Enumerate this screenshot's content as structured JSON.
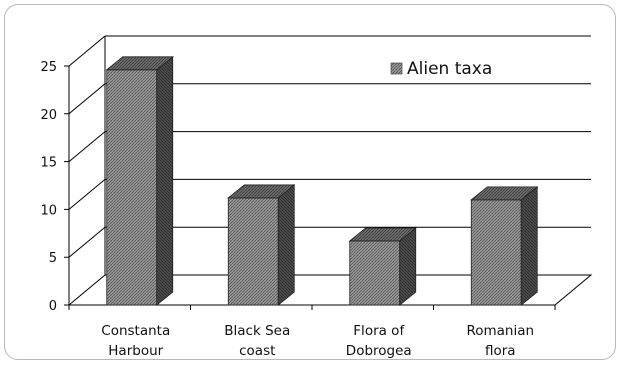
{
  "chart_data": {
    "type": "bar",
    "categories": [
      [
        "Constanta",
        "Harbour"
      ],
      [
        "Black Sea",
        "coast"
      ],
      [
        "Flora of",
        "Dobrogea"
      ],
      [
        "Romanian",
        "flora"
      ]
    ],
    "series": [
      {
        "name": "Alien taxa",
        "values": [
          24.6,
          11.2,
          6.7,
          11.0
        ]
      }
    ],
    "yticks": [
      0,
      5,
      10,
      15,
      20,
      25
    ],
    "ylim": [
      0,
      25
    ],
    "grid": true,
    "legend": "top-right",
    "style": "3d-hatched-bars"
  },
  "colors": {
    "bar_front": "#8c8c8c",
    "bar_side": "#4a4a4a",
    "bar_top": "#6a6a6a",
    "grid": "#000000",
    "frame": "#b8b8b8"
  }
}
